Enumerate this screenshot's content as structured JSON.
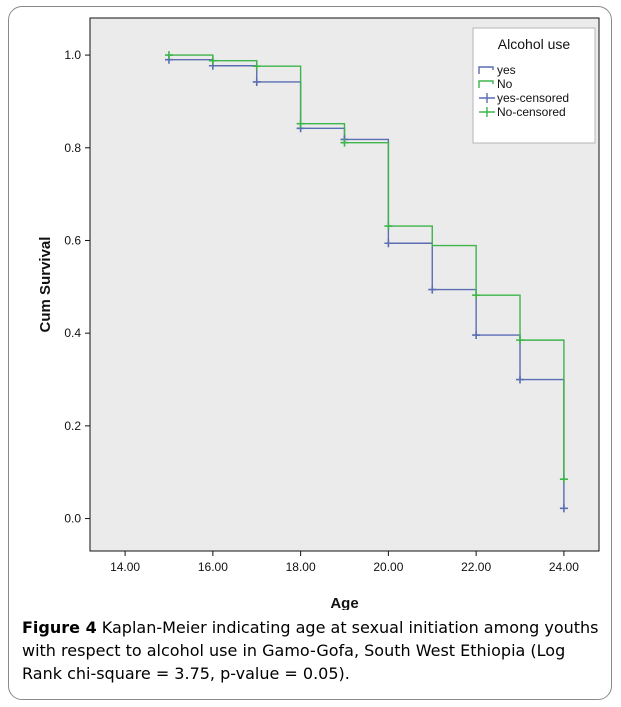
{
  "chart_data": {
    "type": "line",
    "step": true,
    "xlabel": "Age",
    "ylabel": "Cum Survival",
    "xlim": [
      13.2,
      24.8
    ],
    "ylim": [
      -0.07,
      1.08
    ],
    "x_ticks": [
      "14.00",
      "16.00",
      "18.00",
      "20.00",
      "22.00",
      "24.00"
    ],
    "y_ticks": [
      "0.0",
      "0.2",
      "0.4",
      "0.6",
      "0.8",
      "1.0"
    ],
    "plot_background": "#ebebeb",
    "legend": {
      "title": "Alcohol use",
      "position": "top-right",
      "entries": [
        "yes",
        "No",
        "yes-censored",
        "No-censored"
      ]
    },
    "series": [
      {
        "name": "yes",
        "color": "#5b6db3",
        "x": [
          15,
          16,
          17,
          18,
          19,
          20,
          21,
          22,
          23,
          24
        ],
        "y": [
          0.99,
          0.977,
          0.942,
          0.842,
          0.818,
          0.594,
          0.494,
          0.396,
          0.3,
          0.022
        ]
      },
      {
        "name": "No",
        "color": "#3db54a",
        "x": [
          15,
          16,
          17,
          18,
          19,
          20,
          21,
          22,
          23,
          24
        ],
        "y": [
          1.0,
          0.988,
          0.976,
          0.852,
          0.811,
          0.631,
          0.589,
          0.482,
          0.385,
          0.085
        ]
      }
    ],
    "censored": [
      {
        "name": "yes-censored",
        "color": "#5b6db3",
        "x": [
          15,
          16,
          17,
          18,
          19,
          20,
          21,
          22,
          23,
          24
        ],
        "y": [
          0.99,
          0.977,
          0.942,
          0.842,
          0.818,
          0.594,
          0.494,
          0.396,
          0.3,
          0.022
        ]
      },
      {
        "name": "No-censored",
        "color": "#3db54a",
        "x": [
          15,
          16,
          17,
          18,
          19,
          20,
          22,
          23,
          24
        ],
        "y": [
          1.0,
          0.988,
          0.976,
          0.852,
          0.811,
          0.631,
          0.482,
          0.385,
          0.085
        ]
      }
    ]
  },
  "caption": {
    "lead": "Figure 4",
    "text": " Kaplan-Meier indicating age at sexual initiation among youths with respect to alcohol use in Gamo-Gofa, South West Ethiopia (Log Rank chi-square = 3.75, p-value = 0.05)."
  }
}
